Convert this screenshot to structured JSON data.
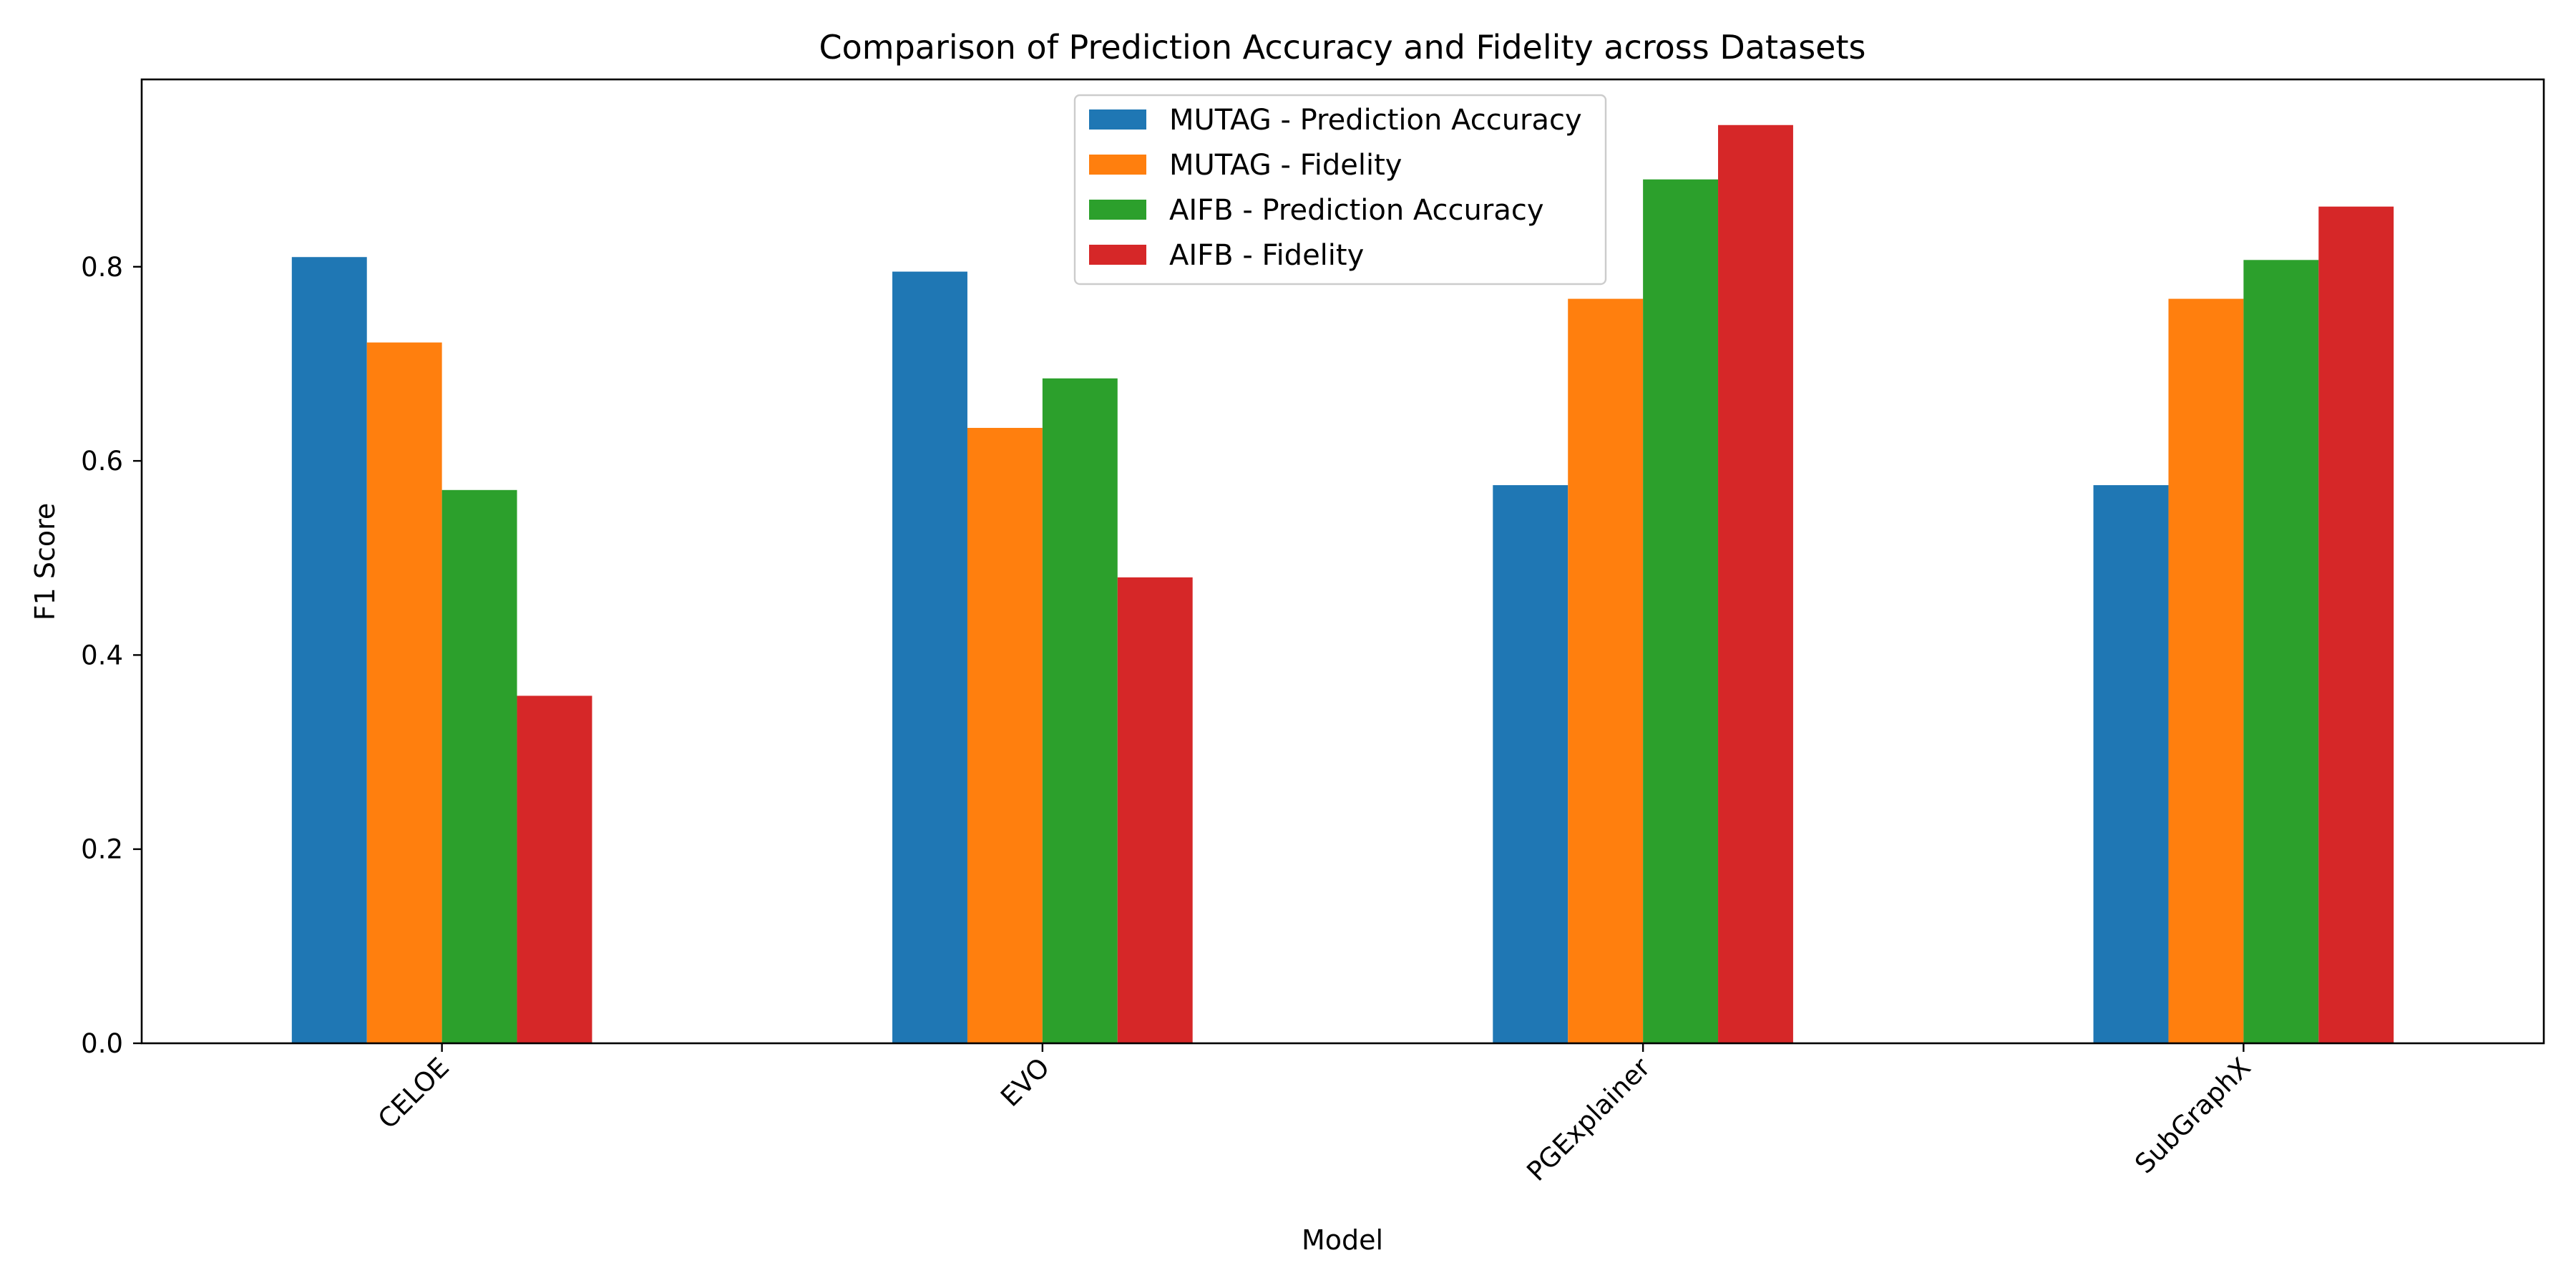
{
  "chart_data": {
    "type": "bar",
    "title": "Comparison of Prediction Accuracy and Fidelity across Datasets",
    "xlabel": "Model",
    "ylabel": "F1 Score",
    "categories": [
      "CELOE",
      "EVO",
      "PGExplainer",
      "SubGraphX"
    ],
    "series": [
      {
        "name": "MUTAG - Prediction Accuracy",
        "values": [
          0.81,
          0.795,
          0.575,
          0.575
        ],
        "color": "#1f77b4"
      },
      {
        "name": "MUTAG - Fidelity",
        "values": [
          0.722,
          0.634,
          0.767,
          0.767
        ],
        "color": "#ff7f0e"
      },
      {
        "name": "AIFB - Prediction Accuracy",
        "values": [
          0.57,
          0.685,
          0.89,
          0.807
        ],
        "color": "#2ca02c"
      },
      {
        "name": "AIFB - Fidelity",
        "values": [
          0.358,
          0.48,
          0.946,
          0.862
        ],
        "color": "#d62728"
      }
    ],
    "ylim": [
      0,
      0.993
    ],
    "yticks": [
      0.0,
      0.2,
      0.4,
      0.6,
      0.8
    ],
    "ytick_labels": [
      "0.0",
      "0.2",
      "0.4",
      "0.6",
      "0.8"
    ],
    "xtick_rotation": 45,
    "grid": false,
    "legend_position": "top-center"
  }
}
